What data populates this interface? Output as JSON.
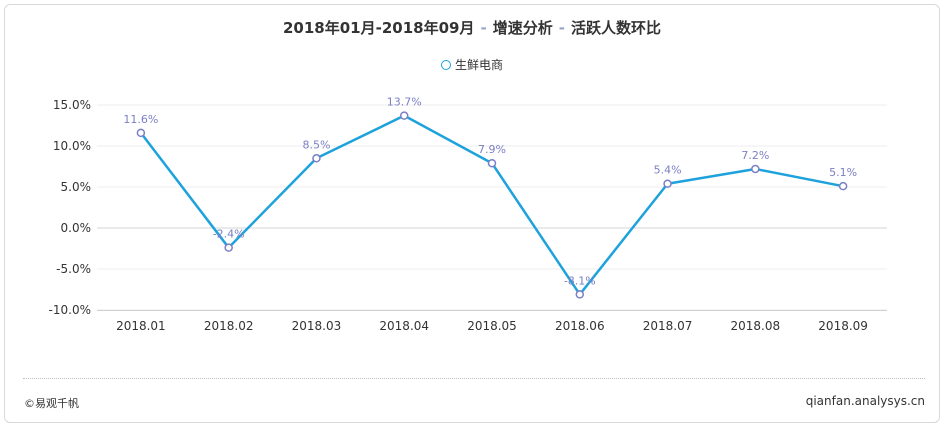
{
  "title": {
    "part1": "2018年01月-2018年09月",
    "sep1": "-",
    "part2": "增速分析",
    "sep2": "-",
    "part3": "活跃人数环比"
  },
  "footer": {
    "left": "©易观千帆",
    "right": "qianfan.analysys.cn"
  },
  "colors": {
    "line": "#1da2dc",
    "marker": "#7b7fc4",
    "label": "#7b7fc4"
  },
  "chart_data": {
    "type": "line",
    "categories": [
      "2018.01",
      "2018.02",
      "2018.03",
      "2018.04",
      "2018.05",
      "2018.06",
      "2018.07",
      "2018.08",
      "2018.09"
    ],
    "series": [
      {
        "name": "生鲜电商",
        "values": [
          11.6,
          -2.4,
          8.5,
          13.7,
          7.9,
          -8.1,
          5.4,
          7.2,
          5.1
        ],
        "labels": [
          "11.6%",
          "-2.4%",
          "8.5%",
          "13.7%",
          "7.9%",
          "-8.1%",
          "5.4%",
          "7.2%",
          "5.1%"
        ]
      }
    ],
    "y_ticks": [
      15,
      10,
      5,
      0,
      -5,
      -10
    ],
    "y_tick_labels": [
      "15.0%",
      "10.0%",
      "5.0%",
      "0.0%",
      "-5.0%",
      "-10.0%"
    ],
    "ylim": [
      -10,
      15
    ],
    "legend": "top-center",
    "grid": true
  }
}
